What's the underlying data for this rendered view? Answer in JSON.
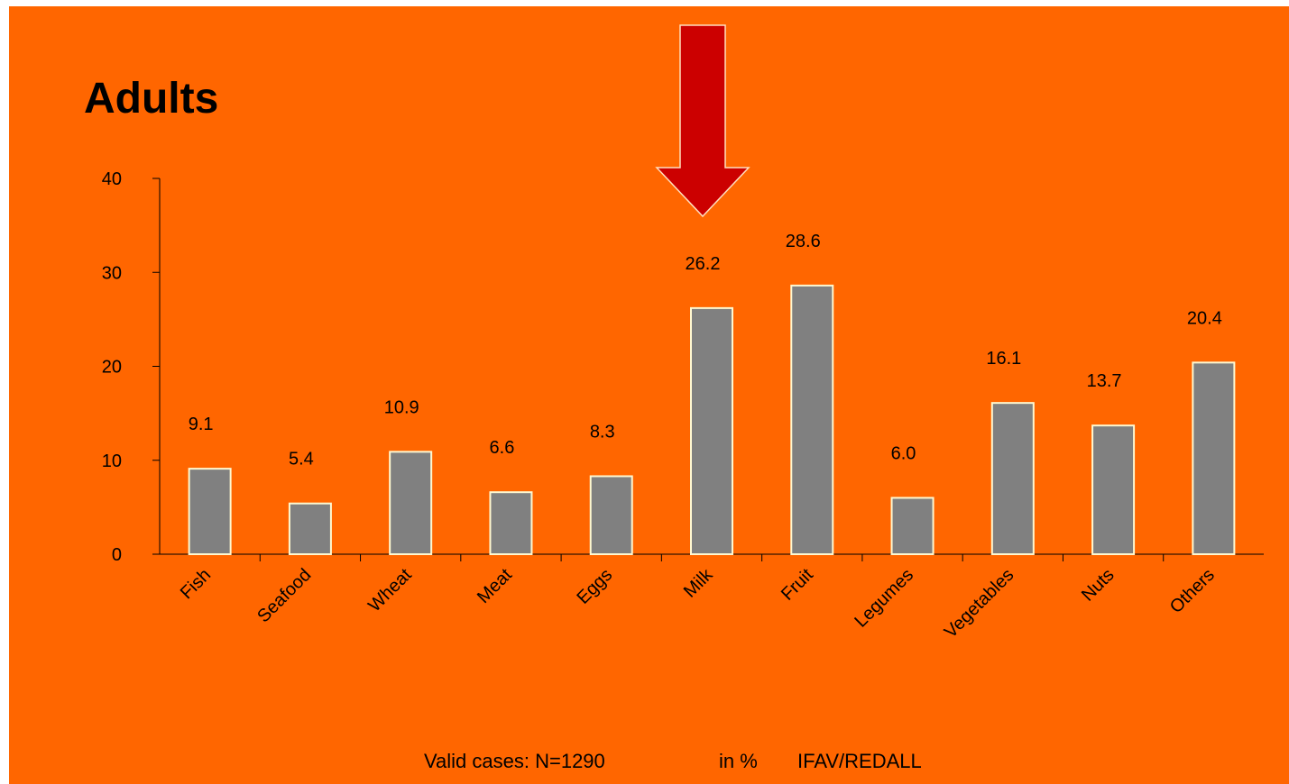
{
  "title": "Adults",
  "colors": {
    "background": "#FF6600",
    "bar": "#808080",
    "bar_stroke": "#FFF8D0",
    "arrow": "#CC0000"
  },
  "chart_data": {
    "type": "bar",
    "categories": [
      "Fish",
      "Seafood",
      "Wheat",
      "Meat",
      "Eggs",
      "Milk",
      "Fruit",
      "Legumes",
      "Vegetables",
      "Nuts",
      "Others"
    ],
    "values": [
      9.1,
      5.4,
      10.9,
      6.6,
      8.3,
      26.2,
      28.6,
      6.0,
      16.1,
      13.7,
      20.4
    ],
    "value_labels": [
      "9.1",
      "5.4",
      "10.9",
      "6.6",
      "8.3",
      "26.2",
      "28.6",
      "6.0",
      "16.1",
      "13.7",
      "20.4"
    ],
    "yticks": [
      0,
      10,
      20,
      30,
      40
    ],
    "ylim": [
      0,
      40
    ],
    "highlighted_category": "Milk",
    "grid": false,
    "legend": "none"
  },
  "footer": {
    "valid_cases": "Valid cases: N=1290",
    "unit": "in %",
    "source": "IFAV/REDALL"
  }
}
